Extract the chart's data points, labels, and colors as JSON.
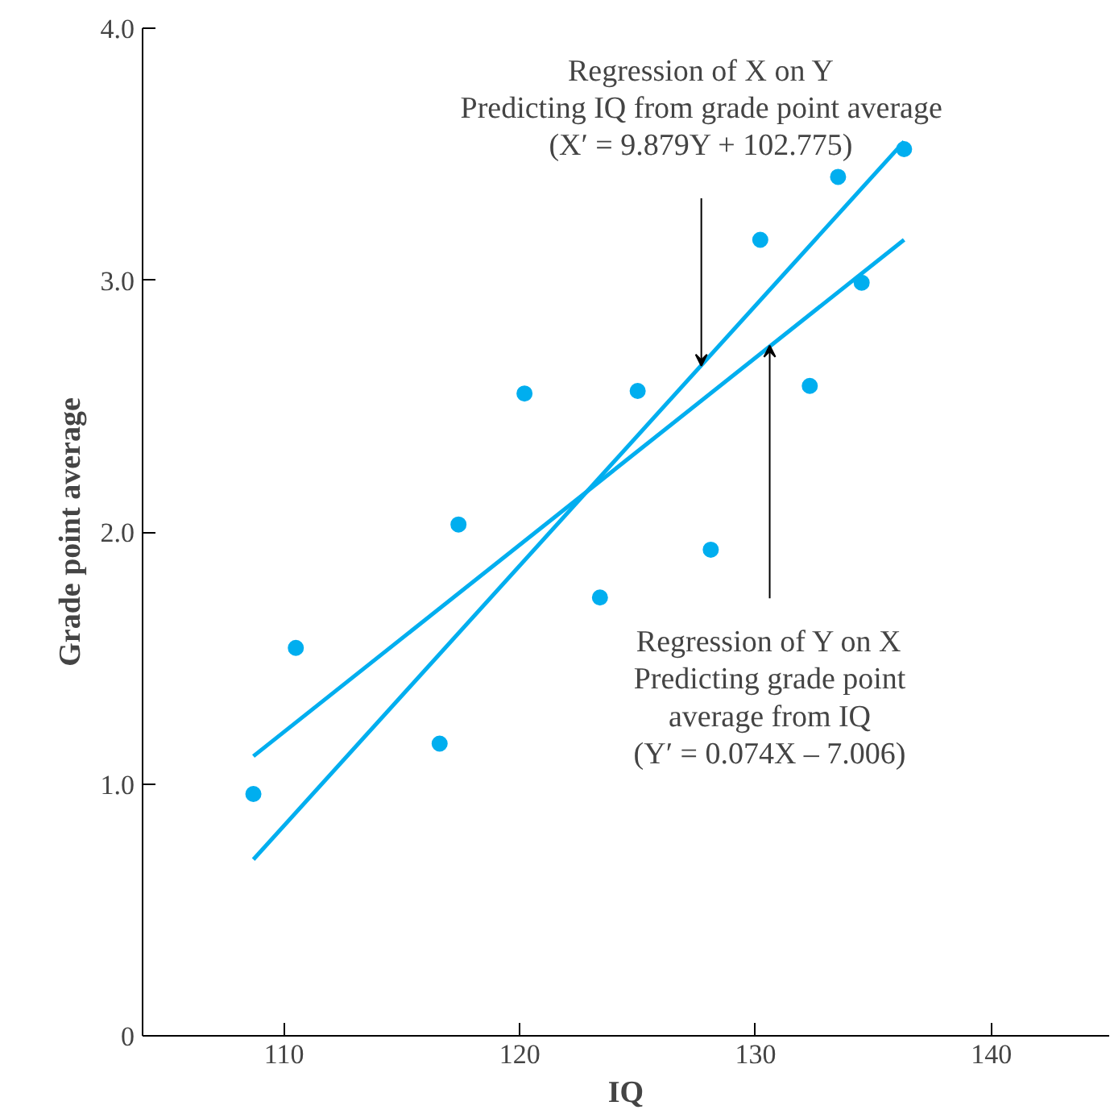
{
  "chart_data": {
    "type": "scatter",
    "xlabel": "IQ",
    "ylabel": "Grade point average",
    "xlim": [
      104,
      145
    ],
    "ylim": [
      0,
      4.0
    ],
    "xticks": [
      110,
      120,
      130,
      140
    ],
    "yticks": [
      0,
      {
        "value": 1,
        "label": "1.0"
      },
      {
        "value": 2,
        "label": "2.0"
      },
      {
        "value": 3,
        "label": "3.0"
      },
      {
        "value": 4,
        "label": "4.0"
      }
    ],
    "grid": false,
    "marker": "circle",
    "series": [
      {
        "color": "#00aeef",
        "x": [
          108.7,
          110.5,
          116.6,
          117.4,
          120.2,
          123.4,
          125.0,
          128.1,
          130.2,
          132.3,
          133.5,
          134.5,
          136.3
        ],
        "values": [
          0.96,
          1.54,
          1.16,
          2.03,
          2.55,
          1.74,
          2.56,
          1.93,
          3.16,
          2.58,
          3.41,
          2.99,
          3.52
        ]
      },
      {
        "type": "line",
        "marker": "none",
        "color": "#00aeef",
        "x": [
          108.7,
          136.3
        ],
        "values": [
          0.7,
          3.55
        ]
      },
      {
        "type": "line",
        "marker": "none",
        "color": "#00aeef",
        "x": [
          108.7,
          136.3
        ],
        "values": [
          1.11,
          3.16
        ]
      }
    ],
    "annotations": [
      {
        "text": "Regression of X on Y\nPredicting IQ from grade point average\n(X′ = 9.879Y + 102.775)",
        "x": 127.7,
        "y": 2.66
      },
      {
        "text": "Regression of Y on X\nPredicting grade point\naverage from IQ\n(Y′ = 0.074X – 7.006)",
        "x": 130.6,
        "y": 2.74
      }
    ]
  }
}
